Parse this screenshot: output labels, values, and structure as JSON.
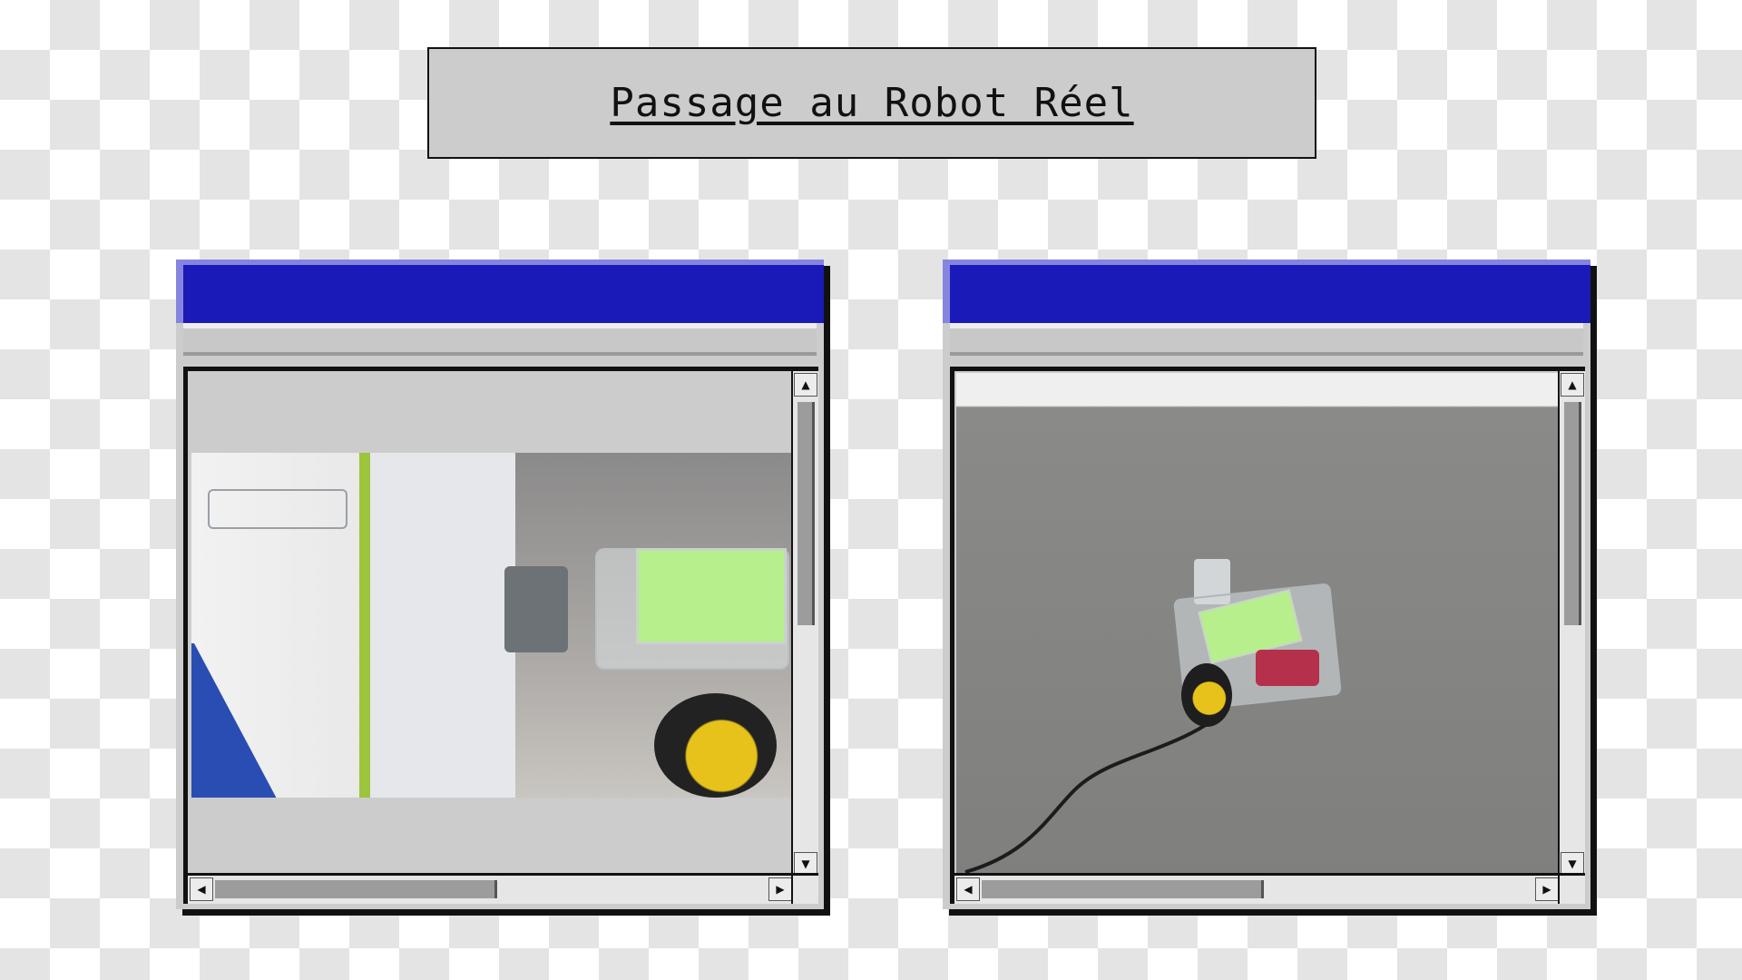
{
  "title": "Passage au Robot Réel",
  "colors": {
    "titlebar": "#1a1ab8",
    "titlebar_highlight": "#8585e0",
    "window_face": "#cccccc",
    "shadow": "#111111"
  },
  "windows": [
    {
      "id": "left",
      "icons": {
        "up": "arrow-up-icon",
        "down": "arrow-down-icon",
        "left": "arrow-left-icon",
        "right": "arrow-right-icon"
      }
    },
    {
      "id": "right",
      "icons": {
        "up": "arrow-up-icon",
        "down": "arrow-down-icon",
        "left": "arrow-left-icon",
        "right": "arrow-right-icon"
      }
    }
  ]
}
